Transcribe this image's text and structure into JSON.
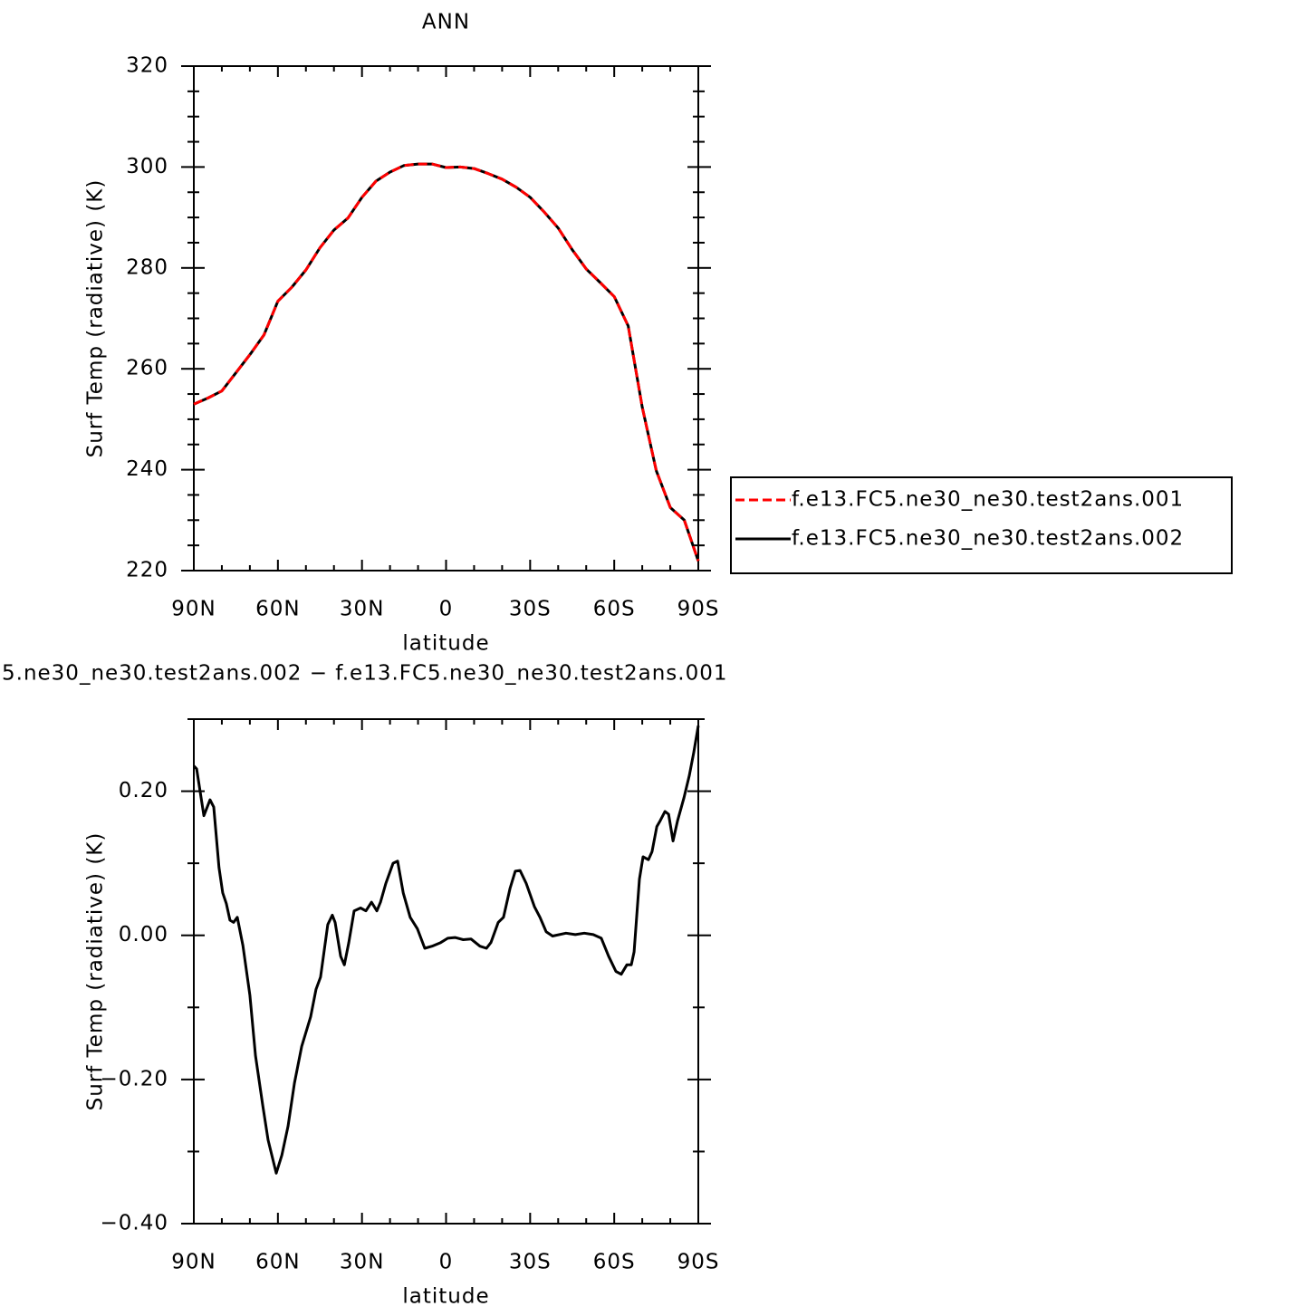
{
  "chart_data": [
    {
      "type": "line",
      "title": "ANN",
      "xlabel": "latitude",
      "ylabel": "Surf Temp (radiative) (K)",
      "x": [
        90,
        85,
        80,
        75,
        70,
        65,
        60,
        55,
        50,
        45,
        40,
        35,
        30,
        25,
        20,
        15,
        10,
        5,
        0,
        -5,
        -10,
        -15,
        -20,
        -25,
        -30,
        -35,
        -40,
        -45,
        -50,
        -55,
        -60,
        -65,
        -70,
        -75,
        -80,
        -85,
        -90
      ],
      "series": [
        {
          "name": "f.e13.FC5.ne30_ne30.test2ans.001",
          "color": "#ff0000",
          "dash": true,
          "values": [
            253,
            254.2,
            255.6,
            259.2,
            262.8,
            266.7,
            273.4,
            276.2,
            279.6,
            284,
            287.5,
            289.9,
            294,
            297.2,
            299,
            300.3,
            300.6,
            300.6,
            299.9,
            300,
            299.7,
            298.7,
            297.6,
            296,
            294,
            291.1,
            287.9,
            283.6,
            279.8,
            277.1,
            274.3,
            268.5,
            252.4,
            239.8,
            232.5,
            230,
            221.9
          ]
        },
        {
          "name": "f.e13.FC5.ne30_ne30.test2ans.002",
          "color": "#000000",
          "dash": false,
          "values": [
            253,
            254.2,
            255.6,
            259.2,
            262.8,
            266.7,
            273.4,
            276.2,
            279.6,
            284,
            287.5,
            289.9,
            294,
            297.2,
            299,
            300.3,
            300.6,
            300.6,
            299.9,
            300,
            299.7,
            298.7,
            297.6,
            296,
            294,
            291.1,
            287.9,
            283.6,
            279.8,
            277.1,
            274.3,
            268.5,
            252.4,
            239.8,
            232.5,
            230,
            221.9
          ]
        }
      ],
      "xlim": [
        90,
        -90
      ],
      "xticks": [
        {
          "value": 90,
          "label": "90N"
        },
        {
          "value": 60,
          "label": "60N"
        },
        {
          "value": 30,
          "label": "30N"
        },
        0,
        {
          "value": -30,
          "label": "30S"
        },
        {
          "value": -60,
          "label": "60S"
        },
        {
          "value": -90,
          "label": "90S"
        }
      ],
      "xminorticks": [
        80,
        70,
        50,
        40,
        20,
        10,
        -10,
        -20,
        -40,
        -50,
        -70,
        -80
      ],
      "ylim": [
        220,
        320
      ],
      "yticks": [
        220,
        240,
        260,
        280,
        300,
        320
      ],
      "yminorticks": [
        225,
        230,
        235,
        245,
        250,
        255,
        265,
        270,
        275,
        285,
        290,
        295,
        305,
        310,
        315
      ],
      "legend": "right"
    },
    {
      "type": "line",
      "title": "5.ne30_ne30.test2ans.002 − f.e13.FC5.ne30_ne30.test2ans.001",
      "xlabel": "latitude",
      "ylabel": "Surf Temp (radiative) (K)",
      "x": [
        90,
        89,
        86.4,
        84.2,
        82.9,
        81,
        79.7,
        78.4,
        77.1,
        75.8,
        74.5,
        72.5,
        70,
        68,
        65.4,
        63.5,
        60.6,
        58.6,
        56.4,
        54.1,
        51.5,
        48.3,
        46.4,
        44.8,
        42.2,
        40.6,
        39.6,
        37.6,
        36.3,
        34.7,
        32.8,
        30.5,
        28.6,
        26.6,
        24.7,
        23.4,
        21.5,
        18.9,
        17.3,
        15.3,
        12.8,
        10.2,
        7.6,
        5,
        1.9,
        -0.6,
        -3.2,
        -6.1,
        -8.9,
        -12.1,
        -14.4,
        -16,
        -18.6,
        -20.5,
        -22.8,
        -24.7,
        -26.4,
        -28.6,
        -31.5,
        -33.5,
        -35.7,
        -38,
        -42.8,
        -46.1,
        -49.3,
        -52.5,
        -55.4,
        -58,
        -60.6,
        -62.5,
        -64.5,
        -66.1,
        -67.1,
        -69,
        -70.3,
        -72.2,
        -73.5,
        -75.2,
        -76.4,
        -78.1,
        -79.4,
        -81,
        -82.6,
        -84.9,
        -86.8,
        -88.4,
        -90
      ],
      "series": [
        {
          "color": "#000000",
          "dash": false,
          "values": [
            0.235,
            0.231,
            0.166,
            0.188,
            0.178,
            0.094,
            0.059,
            0.044,
            0.021,
            0.018,
            0.025,
            -0.014,
            -0.083,
            -0.167,
            -0.236,
            -0.284,
            -0.33,
            -0.305,
            -0.265,
            -0.205,
            -0.154,
            -0.113,
            -0.075,
            -0.058,
            0.015,
            0.028,
            0.018,
            -0.029,
            -0.041,
            -0.01,
            0.034,
            0.038,
            0.034,
            0.046,
            0.034,
            0.046,
            0.072,
            0.1,
            0.103,
            0.059,
            0.025,
            0.009,
            -0.018,
            -0.015,
            -0.01,
            -0.004,
            -0.003,
            -0.006,
            -0.005,
            -0.015,
            -0.018,
            -0.01,
            0.018,
            0.025,
            0.065,
            0.089,
            0.09,
            0.072,
            0.04,
            0.025,
            0.005,
            -0.001,
            0.003,
            0.001,
            0.003,
            0.001,
            -0.004,
            -0.029,
            -0.05,
            -0.054,
            -0.041,
            -0.041,
            -0.023,
            0.078,
            0.109,
            0.105,
            0.116,
            0.151,
            0.159,
            0.172,
            0.168,
            0.131,
            0.159,
            0.191,
            0.222,
            0.254,
            0.291
          ]
        }
      ],
      "xlim": [
        90,
        -90
      ],
      "xticks": [
        {
          "value": 90,
          "label": "90N"
        },
        {
          "value": 60,
          "label": "60N"
        },
        {
          "value": 30,
          "label": "30N"
        },
        0,
        {
          "value": -30,
          "label": "30S"
        },
        {
          "value": -60,
          "label": "60S"
        },
        {
          "value": -90,
          "label": "90S"
        }
      ],
      "xminorticks": [
        80,
        70,
        50,
        40,
        20,
        10,
        -10,
        -20,
        -40,
        -50,
        -70,
        -80
      ],
      "ylim": [
        -0.4,
        0.3
      ],
      "yticks": [
        {
          "value": -0.4,
          "label": "−0.40"
        },
        {
          "value": -0.2,
          "label": "−0.20"
        },
        {
          "value": 0,
          "label": "0.00"
        },
        {
          "value": 0.2,
          "label": "0.20"
        }
      ],
      "yminorticks": [
        -0.3,
        -0.1,
        0.1,
        0.3
      ]
    }
  ]
}
